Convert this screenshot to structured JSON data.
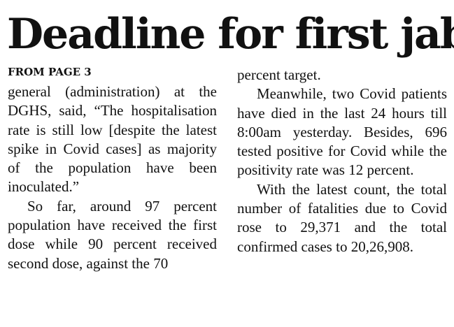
{
  "article": {
    "headline": "Deadline for first jab",
    "kicker": "FROM PAGE 3",
    "left_column": {
      "para1": "general (administration) at the DGHS, said, “The hospitalisation rate is still low [despite the latest spike in Covid cases] as majority of the population have been inoculated.”",
      "para2": "So far, around 97 percent population have received the first dose while 90 percent received second dose, against the 70"
    },
    "right_column": {
      "para1": "percent target.",
      "para2": "Meanwhile, two Covid patients have died in the last 24 hours till 8:00am yesterday. Besides, 696 tested positive for Covid while the positivity rate was 12 percent.",
      "para3": "With the latest count, the total number of fatalities due to Covid rose to 29,371 and the total confirmed cases to 20,26,908."
    }
  }
}
